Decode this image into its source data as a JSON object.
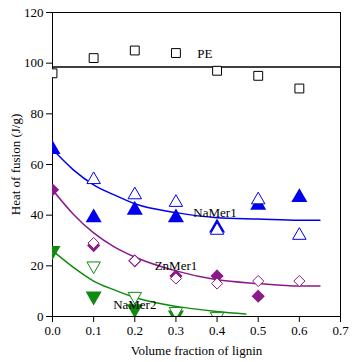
{
  "chart_data": {
    "type": "scatter",
    "x_label": "Volume fraction of lignin",
    "y_label": "Heat of fusion (J/g)",
    "xlim": [
      0,
      0.7
    ],
    "ylim": [
      0,
      120
    ],
    "xticks": [
      {
        "value": 0,
        "label": "0.0"
      },
      0.1,
      0.2,
      0.3,
      0.4,
      0.5,
      0.6,
      0.7
    ],
    "yticks": [
      0,
      20,
      40,
      60,
      80,
      100,
      120
    ],
    "grid": false,
    "series": [
      {
        "name": "PE",
        "color": "#000000",
        "marker": "square",
        "open": {
          "x": [
            0,
            0.1,
            0.2,
            0.3,
            0.4,
            0.5,
            0.6
          ],
          "values": [
            96,
            102,
            105,
            104,
            97,
            95,
            90
          ]
        },
        "fit": {
          "x": [
            0,
            0.7
          ],
          "values": [
            98.5,
            98.5
          ]
        }
      },
      {
        "name": "NaMer1",
        "color": "#0000ee",
        "marker": "triangle",
        "filled": {
          "x": [
            0,
            0.1,
            0.2,
            0.3,
            0.4,
            0.5,
            0.6
          ],
          "values": [
            66,
            39,
            42,
            39,
            35,
            44,
            47
          ]
        },
        "open": {
          "x": [
            0.1,
            0.2,
            0.3,
            0.4,
            0.5,
            0.6
          ],
          "values": [
            54,
            48,
            45,
            34,
            46,
            32
          ]
        },
        "fit": {
          "x": [
            0,
            0.05,
            0.1,
            0.15,
            0.2,
            0.3,
            0.4,
            0.5,
            0.6,
            0.65
          ],
          "values": [
            66,
            58,
            52,
            48,
            44.5,
            41,
            39,
            38.5,
            38,
            38
          ]
        }
      },
      {
        "name": "ZnMer1",
        "color": "#8b1a89",
        "marker": "diamond",
        "filled": {
          "x": [
            0,
            0.1,
            0.2,
            0.3,
            0.4,
            0.5
          ],
          "values": [
            50,
            28,
            22,
            16,
            16,
            8
          ]
        },
        "open": {
          "x": [
            0.1,
            0.2,
            0.3,
            0.4,
            0.5,
            0.6
          ],
          "values": [
            29,
            22,
            15,
            13,
            14,
            14
          ]
        },
        "fit": {
          "x": [
            0,
            0.05,
            0.1,
            0.15,
            0.2,
            0.3,
            0.4,
            0.5,
            0.6,
            0.65
          ],
          "values": [
            50,
            40.5,
            33,
            27.5,
            23.5,
            18,
            14.5,
            13,
            12,
            12
          ]
        }
      },
      {
        "name": "NaMer2",
        "color": "#118a11",
        "marker": "triangle-down",
        "filled": {
          "x": [
            0,
            0.1,
            0.2,
            0.3
          ],
          "values": [
            26,
            8,
            3,
            0.5
          ]
        },
        "open": {
          "x": [
            0.1,
            0.2,
            0.3,
            0.4
          ],
          "values": [
            20,
            8,
            2,
            0
          ]
        },
        "fit": {
          "x": [
            0,
            0.05,
            0.1,
            0.15,
            0.2,
            0.3,
            0.4,
            0.47
          ],
          "values": [
            26,
            19.5,
            14,
            10.5,
            7.5,
            4,
            2,
            1
          ]
        }
      }
    ]
  }
}
